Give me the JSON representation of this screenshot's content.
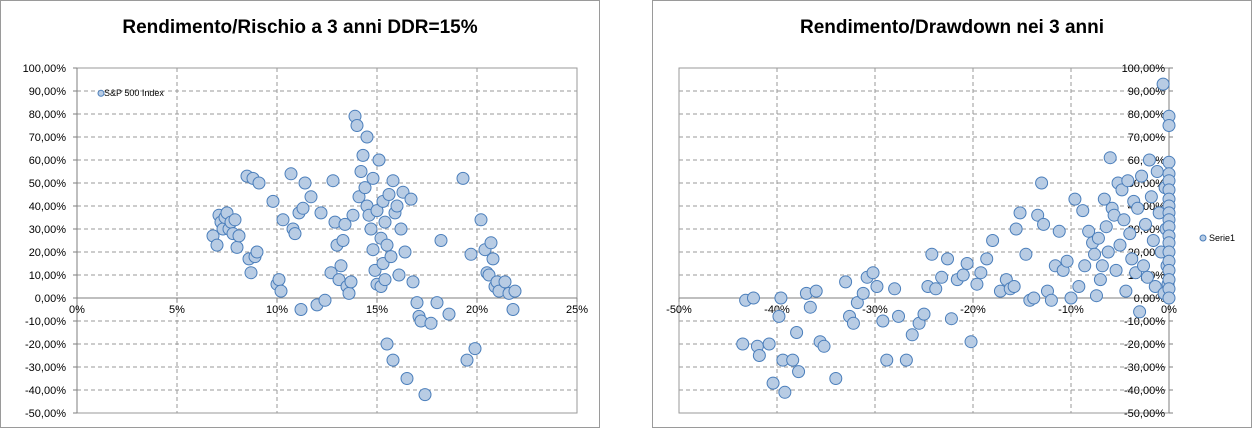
{
  "colors": {
    "marker_fill": "#b8cce4",
    "marker_stroke": "#4a7ebb",
    "grid": "#9a9a9a",
    "axis": "#7f7f7f",
    "plot_border": "#9a9a9a"
  },
  "chart_data": [
    {
      "type": "scatter",
      "title": "Rendimento/Rischio a 3 anni DDR=15%",
      "legend": [
        "S&P 500 Index"
      ],
      "legend_position": "top-left",
      "xlim": [
        0,
        0.25
      ],
      "ylim": [
        -0.5,
        1.0
      ],
      "x_ticks": [
        0,
        0.05,
        0.1,
        0.15,
        0.2,
        0.25
      ],
      "x_tick_labels": [
        "0%",
        "5%",
        "10%",
        "15%",
        "20%",
        "25%"
      ],
      "y_ticks": [
        1.0,
        0.9,
        0.8,
        0.7,
        0.6,
        0.5,
        0.4,
        0.3,
        0.2,
        0.1,
        0.0,
        -0.1,
        -0.2,
        -0.3,
        -0.4,
        -0.5
      ],
      "y_tick_labels": [
        "100,00%",
        "90,00%",
        "80,00%",
        "70,00%",
        "60,00%",
        "50,00%",
        "40,00%",
        "30,00%",
        "20,00%",
        "10,00%",
        "0,00%",
        "-10,00%",
        "-20,00%",
        "-30,00%",
        "-40,00%",
        "-50,00%"
      ],
      "grid": true,
      "points": [
        {
          "x": 0.012,
          "y": 0.89,
          "legend_marker": true
        },
        {
          "x": 0.068,
          "y": 0.27
        },
        {
          "x": 0.07,
          "y": 0.23
        },
        {
          "x": 0.071,
          "y": 0.36
        },
        {
          "x": 0.072,
          "y": 0.33
        },
        {
          "x": 0.073,
          "y": 0.3
        },
        {
          "x": 0.074,
          "y": 0.35
        },
        {
          "x": 0.075,
          "y": 0.37
        },
        {
          "x": 0.076,
          "y": 0.3
        },
        {
          "x": 0.077,
          "y": 0.33
        },
        {
          "x": 0.078,
          "y": 0.28
        },
        {
          "x": 0.079,
          "y": 0.34
        },
        {
          "x": 0.08,
          "y": 0.22
        },
        {
          "x": 0.081,
          "y": 0.27
        },
        {
          "x": 0.085,
          "y": 0.53
        },
        {
          "x": 0.086,
          "y": 0.17
        },
        {
          "x": 0.087,
          "y": 0.11
        },
        {
          "x": 0.088,
          "y": 0.52
        },
        {
          "x": 0.089,
          "y": 0.18
        },
        {
          "x": 0.09,
          "y": 0.2
        },
        {
          "x": 0.091,
          "y": 0.5
        },
        {
          "x": 0.098,
          "y": 0.42
        },
        {
          "x": 0.1,
          "y": 0.06
        },
        {
          "x": 0.101,
          "y": 0.08
        },
        {
          "x": 0.102,
          "y": 0.03
        },
        {
          "x": 0.103,
          "y": 0.34
        },
        {
          "x": 0.107,
          "y": 0.54
        },
        {
          "x": 0.108,
          "y": 0.3
        },
        {
          "x": 0.109,
          "y": 0.28
        },
        {
          "x": 0.111,
          "y": 0.37
        },
        {
          "x": 0.112,
          "y": -0.05
        },
        {
          "x": 0.113,
          "y": 0.39
        },
        {
          "x": 0.114,
          "y": 0.5
        },
        {
          "x": 0.117,
          "y": 0.44
        },
        {
          "x": 0.12,
          "y": -0.03
        },
        {
          "x": 0.122,
          "y": 0.37
        },
        {
          "x": 0.124,
          "y": -0.01
        },
        {
          "x": 0.127,
          "y": 0.11
        },
        {
          "x": 0.128,
          "y": 0.51
        },
        {
          "x": 0.129,
          "y": 0.33
        },
        {
          "x": 0.13,
          "y": 0.23
        },
        {
          "x": 0.131,
          "y": 0.08
        },
        {
          "x": 0.132,
          "y": 0.14
        },
        {
          "x": 0.133,
          "y": 0.25
        },
        {
          "x": 0.134,
          "y": 0.32
        },
        {
          "x": 0.135,
          "y": 0.05
        },
        {
          "x": 0.136,
          "y": 0.02
        },
        {
          "x": 0.137,
          "y": 0.07
        },
        {
          "x": 0.138,
          "y": 0.36
        },
        {
          "x": 0.139,
          "y": 0.79
        },
        {
          "x": 0.14,
          "y": 0.75
        },
        {
          "x": 0.141,
          "y": 0.44
        },
        {
          "x": 0.142,
          "y": 0.55
        },
        {
          "x": 0.143,
          "y": 0.62
        },
        {
          "x": 0.144,
          "y": 0.48
        },
        {
          "x": 0.145,
          "y": 0.7
        },
        {
          "x": 0.145,
          "y": 0.4
        },
        {
          "x": 0.146,
          "y": 0.36
        },
        {
          "x": 0.147,
          "y": 0.3
        },
        {
          "x": 0.148,
          "y": 0.21
        },
        {
          "x": 0.148,
          "y": 0.52
        },
        {
          "x": 0.149,
          "y": 0.12
        },
        {
          "x": 0.15,
          "y": 0.06
        },
        {
          "x": 0.15,
          "y": 0.38
        },
        {
          "x": 0.151,
          "y": 0.6
        },
        {
          "x": 0.152,
          "y": 0.05
        },
        {
          "x": 0.152,
          "y": 0.26
        },
        {
          "x": 0.153,
          "y": 0.42
        },
        {
          "x": 0.153,
          "y": 0.15
        },
        {
          "x": 0.154,
          "y": 0.08
        },
        {
          "x": 0.154,
          "y": 0.33
        },
        {
          "x": 0.155,
          "y": 0.23
        },
        {
          "x": 0.155,
          "y": -0.2
        },
        {
          "x": 0.156,
          "y": 0.45
        },
        {
          "x": 0.157,
          "y": 0.18
        },
        {
          "x": 0.158,
          "y": 0.51
        },
        {
          "x": 0.158,
          "y": -0.27
        },
        {
          "x": 0.159,
          "y": 0.37
        },
        {
          "x": 0.16,
          "y": 0.4
        },
        {
          "x": 0.161,
          "y": 0.1
        },
        {
          "x": 0.162,
          "y": 0.3
        },
        {
          "x": 0.163,
          "y": 0.46
        },
        {
          "x": 0.164,
          "y": 0.2
        },
        {
          "x": 0.165,
          "y": -0.35
        },
        {
          "x": 0.167,
          "y": 0.43
        },
        {
          "x": 0.168,
          "y": 0.07
        },
        {
          "x": 0.17,
          "y": -0.02
        },
        {
          "x": 0.171,
          "y": -0.08
        },
        {
          "x": 0.172,
          "y": -0.1
        },
        {
          "x": 0.174,
          "y": -0.42
        },
        {
          "x": 0.177,
          "y": -0.11
        },
        {
          "x": 0.18,
          "y": -0.02
        },
        {
          "x": 0.182,
          "y": 0.25
        },
        {
          "x": 0.186,
          "y": -0.07
        },
        {
          "x": 0.193,
          "y": 0.52
        },
        {
          "x": 0.195,
          "y": -0.27
        },
        {
          "x": 0.197,
          "y": 0.19
        },
        {
          "x": 0.199,
          "y": -0.22
        },
        {
          "x": 0.202,
          "y": 0.34
        },
        {
          "x": 0.204,
          "y": 0.21
        },
        {
          "x": 0.205,
          "y": 0.11
        },
        {
          "x": 0.206,
          "y": 0.1
        },
        {
          "x": 0.207,
          "y": 0.24
        },
        {
          "x": 0.208,
          "y": 0.17
        },
        {
          "x": 0.209,
          "y": 0.05
        },
        {
          "x": 0.21,
          "y": 0.07
        },
        {
          "x": 0.211,
          "y": 0.03
        },
        {
          "x": 0.214,
          "y": 0.07
        },
        {
          "x": 0.216,
          "y": 0.02
        },
        {
          "x": 0.218,
          "y": -0.05
        },
        {
          "x": 0.219,
          "y": 0.03
        }
      ]
    },
    {
      "type": "scatter",
      "title": "Rendimento/Drawdown nei 3 anni",
      "legend": [
        "Serie1"
      ],
      "legend_position": "right",
      "xlim": [
        -0.5,
        0
      ],
      "ylim": [
        -0.5,
        1.0
      ],
      "x_ticks": [
        -0.5,
        -0.4,
        -0.3,
        -0.2,
        -0.1,
        0
      ],
      "x_tick_labels": [
        "-50%",
        "-40%",
        "-30%",
        "-20%",
        "-10%",
        "0%"
      ],
      "y_ticks": [
        1.0,
        0.9,
        0.8,
        0.7,
        0.6,
        0.5,
        0.4,
        0.3,
        0.2,
        0.1,
        0.0,
        -0.1,
        -0.2,
        -0.3,
        -0.4,
        -0.5
      ],
      "y_tick_labels": [
        "100,00%",
        "90,00%",
        "80,00%",
        "70,00%",
        "60,00%",
        "50,00%",
        "40,00%",
        "30,00%",
        "20,00%",
        "10,00%",
        "0,00%",
        "-10,00%",
        "-20,00%",
        "-30,00%",
        "-40,00%",
        "-50,00%"
      ],
      "grid": true,
      "points": [
        {
          "x": -0.435,
          "y": -0.2
        },
        {
          "x": -0.432,
          "y": -0.01
        },
        {
          "x": -0.424,
          "y": 0.0
        },
        {
          "x": -0.42,
          "y": -0.21
        },
        {
          "x": -0.418,
          "y": -0.25
        },
        {
          "x": -0.408,
          "y": -0.2
        },
        {
          "x": -0.404,
          "y": -0.37
        },
        {
          "x": -0.398,
          "y": -0.08
        },
        {
          "x": -0.396,
          "y": 0.0
        },
        {
          "x": -0.394,
          "y": -0.27
        },
        {
          "x": -0.392,
          "y": -0.41
        },
        {
          "x": -0.384,
          "y": -0.27
        },
        {
          "x": -0.38,
          "y": -0.15
        },
        {
          "x": -0.378,
          "y": -0.32
        },
        {
          "x": -0.37,
          "y": 0.02
        },
        {
          "x": -0.366,
          "y": -0.04
        },
        {
          "x": -0.36,
          "y": 0.03
        },
        {
          "x": -0.356,
          "y": -0.19
        },
        {
          "x": -0.352,
          "y": -0.21
        },
        {
          "x": -0.34,
          "y": -0.35
        },
        {
          "x": -0.33,
          "y": 0.07
        },
        {
          "x": -0.326,
          "y": -0.08
        },
        {
          "x": -0.322,
          "y": -0.11
        },
        {
          "x": -0.318,
          "y": -0.02
        },
        {
          "x": -0.312,
          "y": 0.02
        },
        {
          "x": -0.308,
          "y": 0.09
        },
        {
          "x": -0.302,
          "y": 0.11
        },
        {
          "x": -0.298,
          "y": 0.05
        },
        {
          "x": -0.292,
          "y": -0.1
        },
        {
          "x": -0.288,
          "y": -0.27
        },
        {
          "x": -0.28,
          "y": 0.04
        },
        {
          "x": -0.276,
          "y": -0.08
        },
        {
          "x": -0.268,
          "y": -0.27
        },
        {
          "x": -0.262,
          "y": -0.16
        },
        {
          "x": -0.255,
          "y": -0.11
        },
        {
          "x": -0.25,
          "y": -0.07
        },
        {
          "x": -0.246,
          "y": 0.05
        },
        {
          "x": -0.242,
          "y": 0.19
        },
        {
          "x": -0.238,
          "y": 0.04
        },
        {
          "x": -0.232,
          "y": 0.09
        },
        {
          "x": -0.226,
          "y": 0.17
        },
        {
          "x": -0.222,
          "y": -0.09
        },
        {
          "x": -0.216,
          "y": 0.08
        },
        {
          "x": -0.21,
          "y": 0.1
        },
        {
          "x": -0.206,
          "y": 0.15
        },
        {
          "x": -0.202,
          "y": -0.19
        },
        {
          "x": -0.196,
          "y": 0.06
        },
        {
          "x": -0.192,
          "y": 0.11
        },
        {
          "x": -0.186,
          "y": 0.17
        },
        {
          "x": -0.18,
          "y": 0.25
        },
        {
          "x": -0.172,
          "y": 0.03
        },
        {
          "x": -0.166,
          "y": 0.08
        },
        {
          "x": -0.162,
          "y": 0.04
        },
        {
          "x": -0.158,
          "y": 0.05
        },
        {
          "x": -0.156,
          "y": 0.3
        },
        {
          "x": -0.152,
          "y": 0.37
        },
        {
          "x": -0.146,
          "y": 0.19
        },
        {
          "x": -0.142,
          "y": -0.01
        },
        {
          "x": -0.138,
          "y": 0.0
        },
        {
          "x": -0.134,
          "y": 0.36
        },
        {
          "x": -0.13,
          "y": 0.5
        },
        {
          "x": -0.128,
          "y": 0.32
        },
        {
          "x": -0.124,
          "y": 0.03
        },
        {
          "x": -0.12,
          "y": -0.01
        },
        {
          "x": -0.116,
          "y": 0.14
        },
        {
          "x": -0.112,
          "y": 0.29
        },
        {
          "x": -0.108,
          "y": 0.12
        },
        {
          "x": -0.104,
          "y": 0.16
        },
        {
          "x": -0.1,
          "y": 0.0
        },
        {
          "x": -0.096,
          "y": 0.43
        },
        {
          "x": -0.092,
          "y": 0.05
        },
        {
          "x": -0.088,
          "y": 0.38
        },
        {
          "x": -0.086,
          "y": 0.14
        },
        {
          "x": -0.082,
          "y": 0.29
        },
        {
          "x": -0.078,
          "y": 0.24
        },
        {
          "x": -0.076,
          "y": 0.19
        },
        {
          "x": -0.074,
          "y": 0.01
        },
        {
          "x": -0.072,
          "y": 0.26
        },
        {
          "x": -0.07,
          "y": 0.08
        },
        {
          "x": -0.068,
          "y": 0.14
        },
        {
          "x": -0.066,
          "y": 0.43
        },
        {
          "x": -0.064,
          "y": 0.31
        },
        {
          "x": -0.062,
          "y": 0.2
        },
        {
          "x": -0.06,
          "y": 0.61
        },
        {
          "x": -0.058,
          "y": 0.39
        },
        {
          "x": -0.056,
          "y": 0.36
        },
        {
          "x": -0.054,
          "y": 0.12
        },
        {
          "x": -0.052,
          "y": 0.5
        },
        {
          "x": -0.05,
          "y": 0.23
        },
        {
          "x": -0.048,
          "y": 0.47
        },
        {
          "x": -0.046,
          "y": 0.34
        },
        {
          "x": -0.044,
          "y": 0.03
        },
        {
          "x": -0.042,
          "y": 0.51
        },
        {
          "x": -0.04,
          "y": 0.28
        },
        {
          "x": -0.038,
          "y": 0.17
        },
        {
          "x": -0.036,
          "y": 0.42
        },
        {
          "x": -0.034,
          "y": 0.11
        },
        {
          "x": -0.032,
          "y": 0.39
        },
        {
          "x": -0.03,
          "y": -0.06
        },
        {
          "x": -0.028,
          "y": 0.53
        },
        {
          "x": -0.026,
          "y": 0.14
        },
        {
          "x": -0.024,
          "y": 0.32
        },
        {
          "x": -0.022,
          "y": 0.09
        },
        {
          "x": -0.02,
          "y": 0.6
        },
        {
          "x": -0.018,
          "y": 0.44
        },
        {
          "x": -0.016,
          "y": 0.25
        },
        {
          "x": -0.014,
          "y": 0.05
        },
        {
          "x": -0.012,
          "y": 0.55
        },
        {
          "x": -0.01,
          "y": 0.37
        },
        {
          "x": -0.008,
          "y": 0.2
        },
        {
          "x": -0.006,
          "y": 0.93
        },
        {
          "x": -0.005,
          "y": 0.02
        },
        {
          "x": -0.004,
          "y": 0.48
        },
        {
          "x": -0.003,
          "y": 0.3
        },
        {
          "x": -0.002,
          "y": 0.14
        },
        {
          "x": -0.001,
          "y": 0.06
        },
        {
          "x": 0.0,
          "y": 0.79
        },
        {
          "x": 0.0,
          "y": 0.75
        },
        {
          "x": 0.0,
          "y": 0.59
        },
        {
          "x": 0.0,
          "y": 0.54
        },
        {
          "x": 0.0,
          "y": 0.51
        },
        {
          "x": 0.0,
          "y": 0.47
        },
        {
          "x": 0.0,
          "y": 0.43
        },
        {
          "x": 0.0,
          "y": 0.4
        },
        {
          "x": 0.0,
          "y": 0.37
        },
        {
          "x": 0.0,
          "y": 0.34
        },
        {
          "x": 0.0,
          "y": 0.31
        },
        {
          "x": 0.0,
          "y": 0.27
        },
        {
          "x": 0.0,
          "y": 0.24
        },
        {
          "x": 0.0,
          "y": 0.2
        },
        {
          "x": 0.0,
          "y": 0.16
        },
        {
          "x": 0.0,
          "y": 0.12
        },
        {
          "x": 0.0,
          "y": 0.08
        },
        {
          "x": 0.0,
          "y": 0.04
        },
        {
          "x": 0.0,
          "y": 0.0
        }
      ]
    }
  ]
}
